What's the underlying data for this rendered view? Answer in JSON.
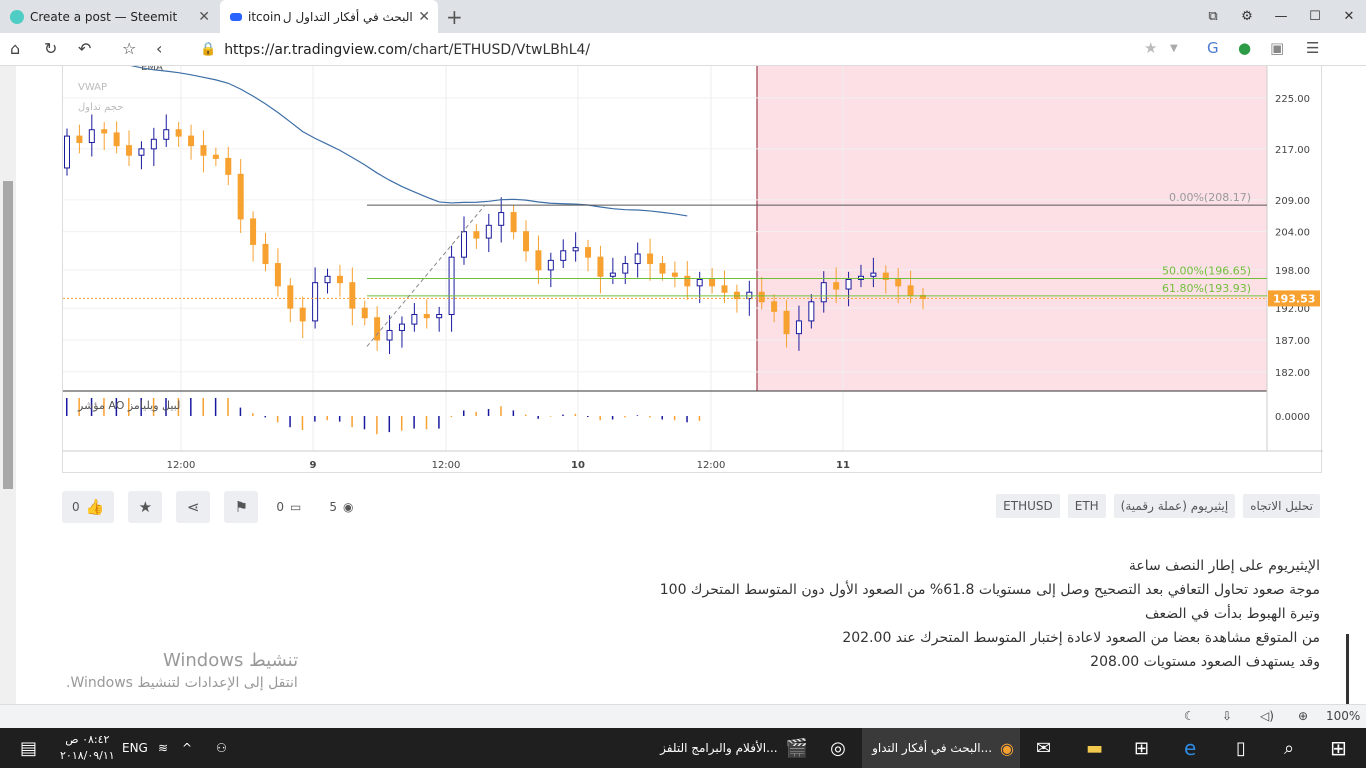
{
  "browser": {
    "tabs": [
      {
        "title": "Create a post — Steemit",
        "close": "✕"
      },
      {
        "title": "البحث في أفكار التداول ل",
        "title_suffix": "itcoin",
        "close": "✕"
      }
    ],
    "new_tab": "+",
    "url_host": "https://ar.tradingview.com",
    "url_path": "/chart/ETHUSD/VtwLBhL4/"
  },
  "chart": {
    "indicators": [
      "EMA",
      "VWAP",
      "حجم تداول"
    ],
    "ao_label": "مؤشر AO لبيل ويليامز",
    "ao_value": "0.0000",
    "price_ticks": [
      "225.00",
      "217.00",
      "209.00",
      "204.00",
      "198.00",
      "192.00",
      "187.00",
      "182.00"
    ],
    "current_price": "193.53",
    "fib_levels": [
      {
        "label": "0.00%(208.17)",
        "color": "#999999"
      },
      {
        "label": "50.00%(196.65)",
        "color": "#6fbf3a"
      },
      {
        "label": "61.80%(193.93)",
        "color": "#6fbf3a"
      }
    ],
    "time_ticks": [
      "12:00",
      "9",
      "12:00",
      "10",
      "12:00",
      "11"
    ],
    "colors": {
      "up": "#1a1a9e",
      "down": "#f7a130",
      "ema": "#3d6ea6",
      "zone": "#fde0e6",
      "ao_up": "#1a1a9e",
      "ao_down": "#f7a130"
    }
  },
  "chart_data": {
    "type": "candlestick",
    "symbol": "ETHUSD",
    "xlabel": "",
    "ylabel": "",
    "ylim": [
      179,
      230
    ],
    "x_ticks": [
      "12:00",
      "9",
      "12:00",
      "10",
      "12:00",
      "11"
    ],
    "y_ticks": [
      225.0,
      217.0,
      209.0,
      204.0,
      198.0,
      192.0,
      187.0,
      182.0
    ],
    "annotations": [
      "0.00%(208.17)",
      "50.00%(196.65)",
      "61.80%(193.93)"
    ],
    "last_price": 193.53,
    "close_series": [
      219.0,
      218.0,
      220.0,
      219.5,
      217.5,
      216.0,
      217.0,
      218.5,
      220.0,
      219.0,
      217.5,
      216.0,
      215.5,
      213.0,
      206.0,
      202.0,
      199.0,
      195.5,
      192.0,
      190.0,
      196.0,
      197.0,
      196.0,
      192.0,
      190.5,
      187.0,
      188.5,
      189.5,
      191.0,
      190.5,
      191.0,
      200.0,
      204.0,
      203.0,
      205.0,
      207.0,
      204.0,
      201.0,
      198.0,
      199.5,
      201.0,
      201.5,
      200.0,
      197.0,
      197.5,
      199.0,
      200.5,
      199.0,
      197.5,
      197.0,
      195.5,
      196.5,
      195.5,
      194.5,
      193.5,
      194.5,
      193.0,
      191.5,
      188.0,
      190.0,
      193.0,
      196.0,
      195.0,
      196.5,
      197.0,
      197.5,
      196.5,
      195.5,
      194.0,
      193.53
    ]
  },
  "actions": {
    "likes": "0",
    "comments": "0",
    "views": "5"
  },
  "tags": [
    "تحليل الاتجاه",
    "إيثيريوم (عملة رقمية)",
    "ETH",
    "ETHUSD"
  ],
  "description": [
    "الإيثيريوم على إطار النصف ساعة",
    "موجة صعود تحاول التعافي بعد التصحيح وصل إلى مستويات 61.8% من الصعود الأول دون المتوسط المتحرك 100",
    "وتيرة الهبوط بدأت في الضعف",
    "من المتوقع مشاهدة بعضا من الصعود لاعادة إختبار المتوسط المتحرك عند 202.00",
    "وقد يستهدف الصعود مستويات 208.00"
  ],
  "watermark": {
    "line1": "تنشيط Windows",
    "line2": "انتقل إلى الإعدادات لتنشيط Windows."
  },
  "statusbar": {
    "zoom": "100%"
  },
  "taskbar": {
    "lang": "ENG",
    "time": "٠٨:٤٢ ص",
    "date": "٢٠١٨/٠٩/١١",
    "app1": "البحث في أفكار التداو...",
    "app2": "الأفلام والبرامج التلفز..."
  }
}
